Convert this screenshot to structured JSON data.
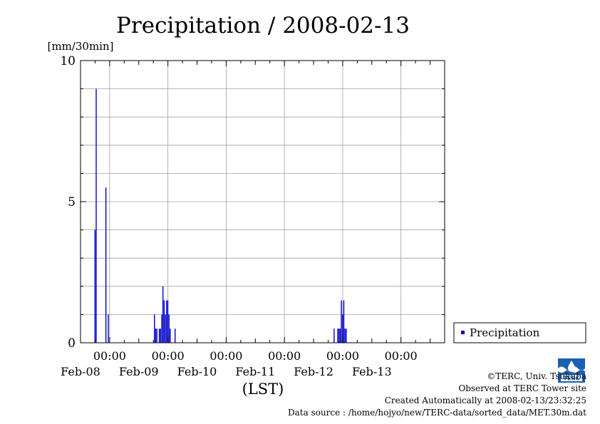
{
  "chart_data": {
    "type": "bar",
    "title": "Precipitation / 2008-02-13",
    "ylabel": "[mm/30min]",
    "xlabel": "(LST)",
    "ylim": [
      0,
      10
    ],
    "yticks": [
      0,
      5,
      10
    ],
    "xlim": [
      "2008-02-07T12:00",
      "2008-02-13T18:00"
    ],
    "midnight_label": "00:00",
    "date_labels": [
      "Feb-08",
      "Feb-09",
      "Feb-10",
      "Feb-11",
      "Feb-12",
      "Feb-13"
    ],
    "grid": true,
    "legend_position": "right",
    "series": [
      {
        "name": "Precipitation",
        "color": "#0000cc",
        "points": [
          {
            "t": "2008-02-07T18:00",
            "v": 4.0
          },
          {
            "t": "2008-02-07T18:30",
            "v": 9.0
          },
          {
            "t": "2008-02-07T22:30",
            "v": 5.5
          },
          {
            "t": "2008-02-07T23:30",
            "v": 1.0
          },
          {
            "t": "2008-02-08T18:30",
            "v": 1.0
          },
          {
            "t": "2008-02-08T19:00",
            "v": 0.5
          },
          {
            "t": "2008-02-08T19:30",
            "v": 0.5
          },
          {
            "t": "2008-02-08T20:30",
            "v": 0.5
          },
          {
            "t": "2008-02-08T21:00",
            "v": 0.5
          },
          {
            "t": "2008-02-08T21:30",
            "v": 1.0
          },
          {
            "t": "2008-02-08T22:00",
            "v": 2.0
          },
          {
            "t": "2008-02-08T22:30",
            "v": 1.5
          },
          {
            "t": "2008-02-08T23:00",
            "v": 1.0
          },
          {
            "t": "2008-02-08T23:30",
            "v": 1.5
          },
          {
            "t": "2008-02-09T00:00",
            "v": 1.5
          },
          {
            "t": "2008-02-09T00:30",
            "v": 1.0
          },
          {
            "t": "2008-02-09T01:00",
            "v": 0.5
          },
          {
            "t": "2008-02-09T03:00",
            "v": 0.5
          },
          {
            "t": "2008-02-11T20:30",
            "v": 0.5
          },
          {
            "t": "2008-02-11T22:00",
            "v": 0.5
          },
          {
            "t": "2008-02-11T22:30",
            "v": 0.5
          },
          {
            "t": "2008-02-11T23:00",
            "v": 0.5
          },
          {
            "t": "2008-02-11T23:30",
            "v": 1.5
          },
          {
            "t": "2008-02-12T00:00",
            "v": 1.0
          },
          {
            "t": "2008-02-12T00:30",
            "v": 1.5
          },
          {
            "t": "2008-02-12T01:00",
            "v": 0.5
          },
          {
            "t": "2008-02-12T01:30",
            "v": 0.5
          }
        ]
      }
    ]
  },
  "footer": {
    "copyright": "©TERC, Univ. Tsukuba",
    "observed": "Observed at TERC Tower site",
    "created": "Created Automatically at 2008-02-13/23:32:25",
    "source": "Data source : /home/hojyo/new/TERC-data/sorted_data/MET.30m.dat"
  },
  "logo": {
    "text": "TERC",
    "color": "#1a5fb4"
  }
}
